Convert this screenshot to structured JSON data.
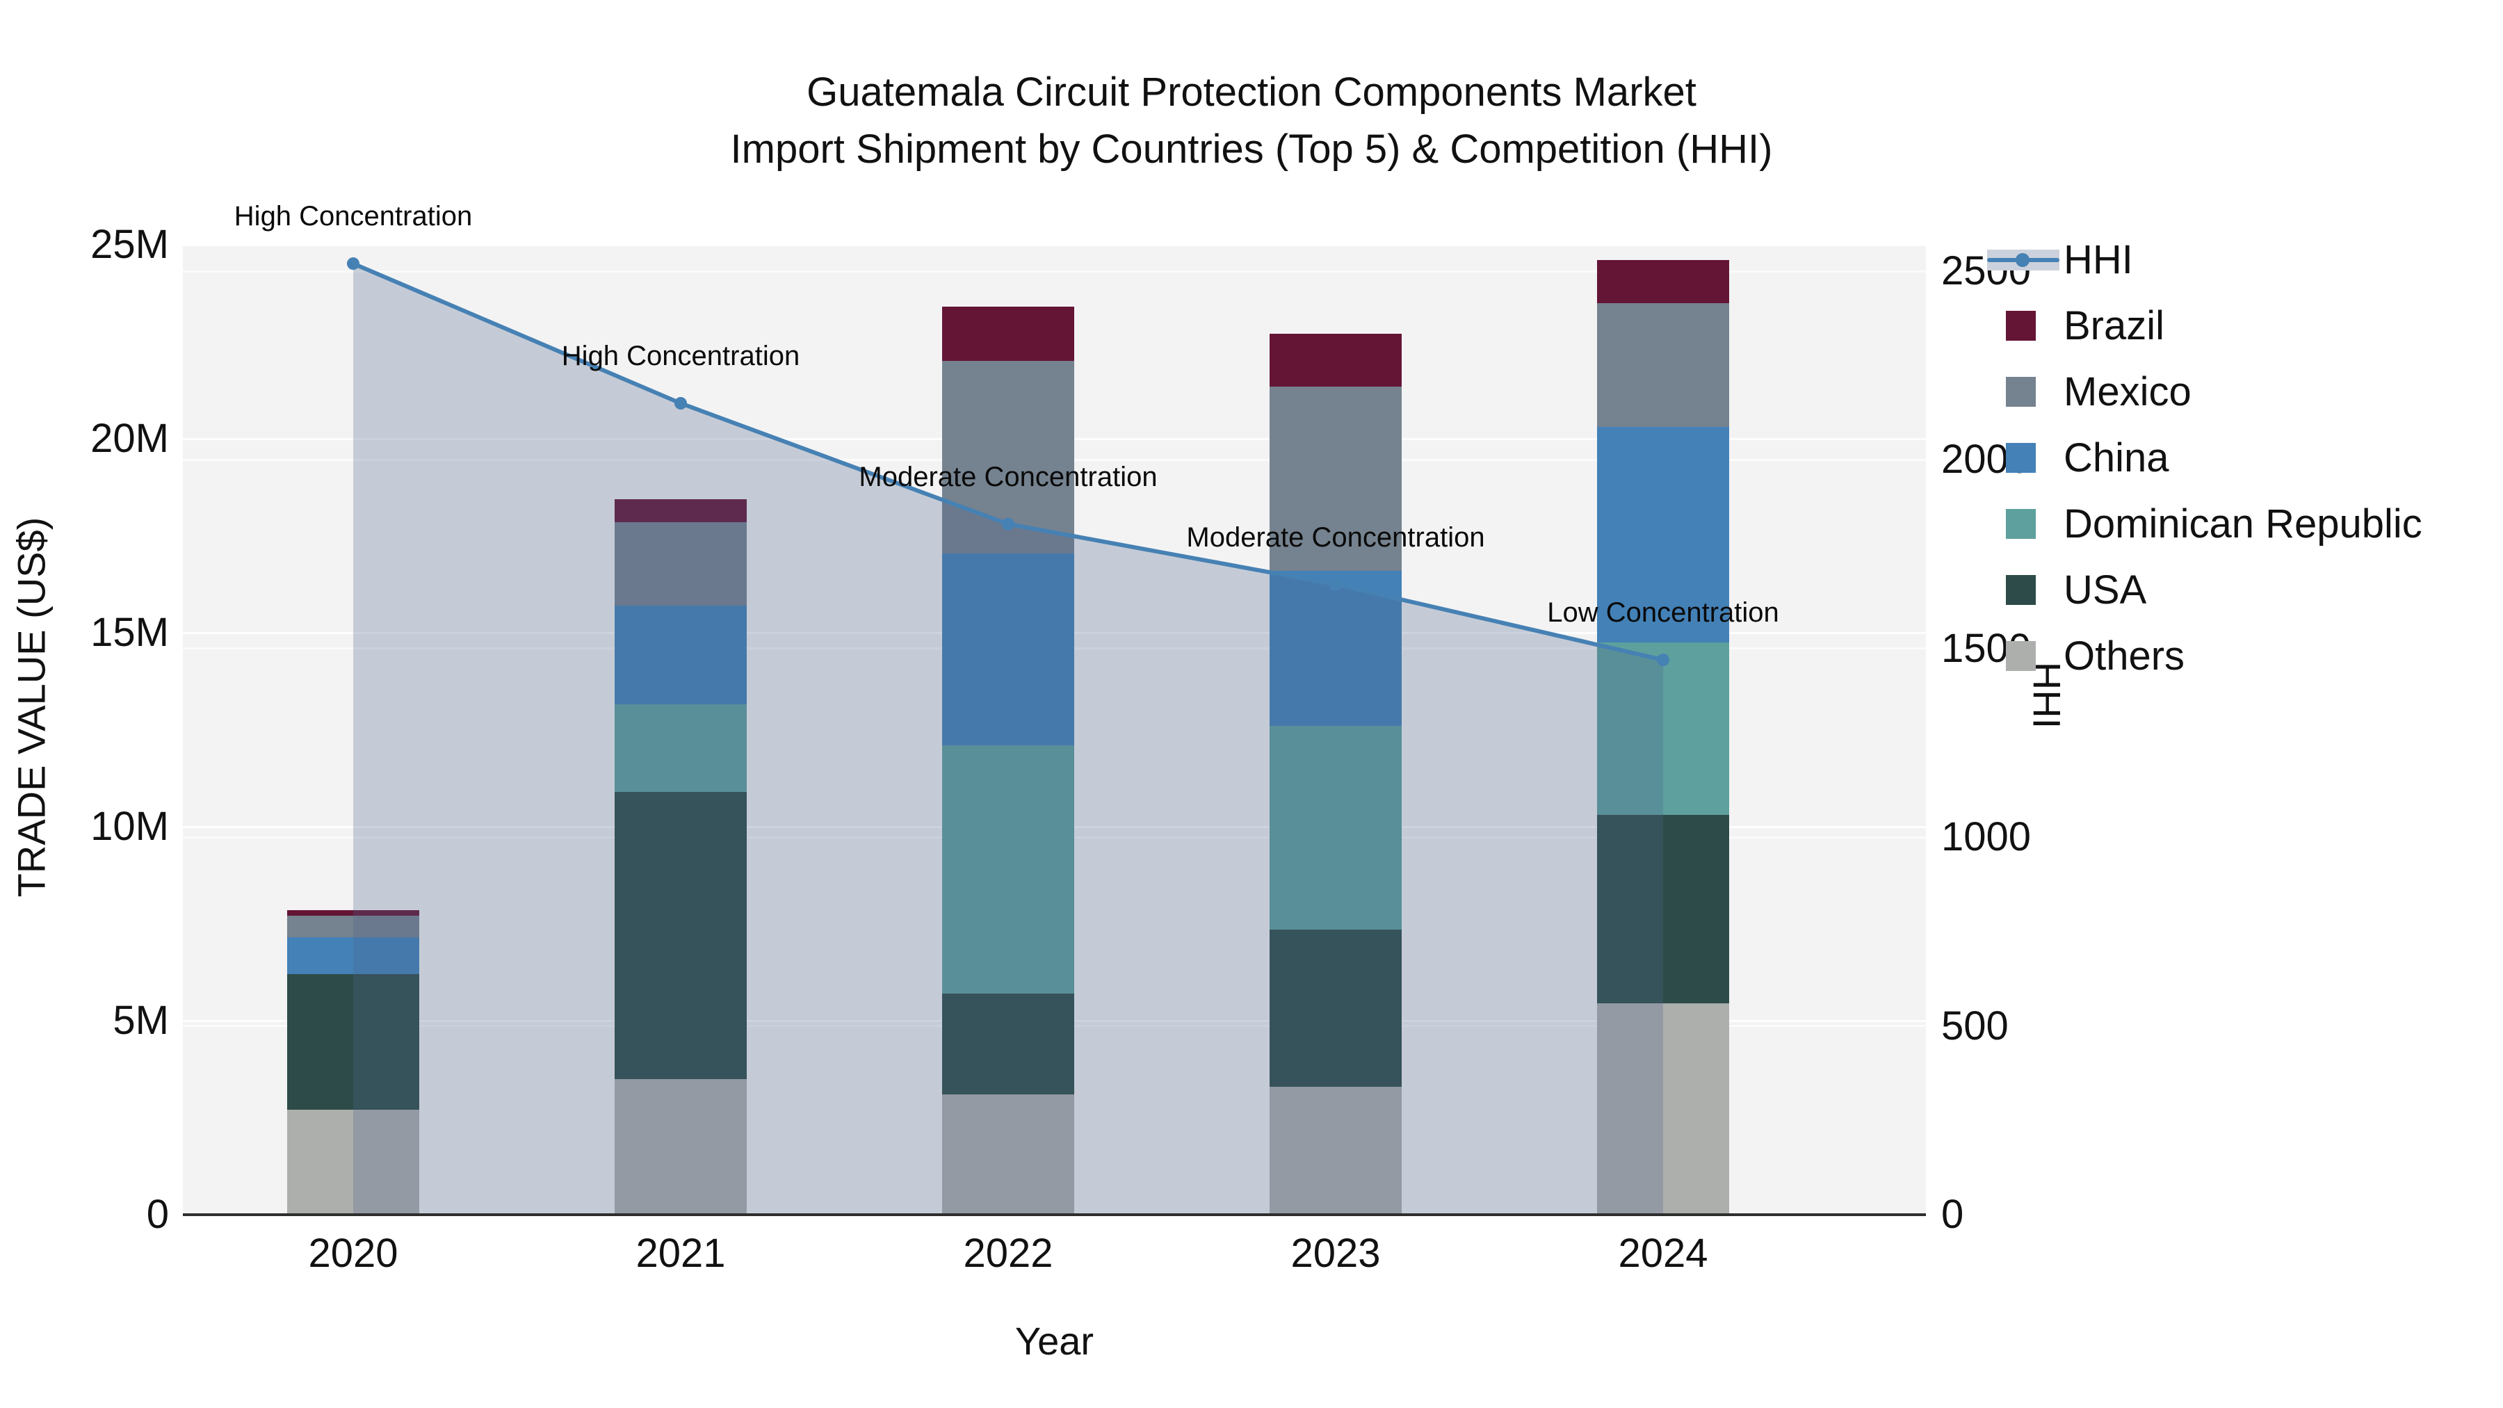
{
  "title": {
    "line1": "Guatemala Circuit Protection Components Market",
    "line2": "Import Shipment by Countries (Top 5) & Competition (HHI)"
  },
  "axes": {
    "x": {
      "title": "Year",
      "categories": [
        "2020",
        "2021",
        "2022",
        "2023",
        "2024"
      ]
    },
    "y_left": {
      "title": "TRADE VALUE (US$)",
      "tick_labels": [
        "0",
        "5M",
        "10M",
        "15M",
        "20M",
        "25M"
      ],
      "tick_values_musd": [
        0,
        5,
        10,
        15,
        20,
        25
      ],
      "range_musd": [
        0,
        25
      ]
    },
    "y_right": {
      "title": "HHI",
      "tick_labels": [
        "0",
        "500",
        "1000",
        "1500",
        "2000",
        "2500"
      ],
      "tick_values": [
        0,
        500,
        1000,
        1500,
        2000,
        2500
      ],
      "range": [
        0,
        2570
      ]
    }
  },
  "legend": {
    "items": [
      {
        "label": "HHI",
        "swatch": "line-area"
      },
      {
        "label": "Brazil",
        "swatch": "square"
      },
      {
        "label": "Mexico",
        "swatch": "square"
      },
      {
        "label": "China",
        "swatch": "square"
      },
      {
        "label": "Dominican Republic",
        "swatch": "square"
      },
      {
        "label": "USA",
        "swatch": "square"
      },
      {
        "label": "Others",
        "swatch": "square"
      }
    ]
  },
  "chart_data": {
    "type": [
      "bar",
      "line"
    ],
    "title": "Guatemala Circuit Protection Components Market Import Shipment by Countries (Top 5) & Competition (HHI)",
    "categories": [
      "2020",
      "2021",
      "2022",
      "2023",
      "2024"
    ],
    "bar_unit": "million US$",
    "bar_axis": "left",
    "stack_order_bottom_to_top": [
      "Others",
      "USA",
      "Dominican Republic",
      "China",
      "Mexico",
      "Brazil"
    ],
    "series": [
      {
        "name": "Others",
        "color": "#adafac",
        "values": [
          2.7,
          3.5,
          3.1,
          3.3,
          5.45
        ]
      },
      {
        "name": "USA",
        "color": "#2d4b48",
        "values": [
          3.5,
          7.4,
          2.6,
          4.05,
          4.85
        ]
      },
      {
        "name": "Dominican Republic",
        "color": "#5da09d",
        "values": [
          0,
          2.25,
          6.4,
          5.25,
          4.45
        ]
      },
      {
        "name": "China",
        "color": "#4381b7",
        "values": [
          0.95,
          2.55,
          4.95,
          4.0,
          5.55
        ]
      },
      {
        "name": "Mexico",
        "color": "#75828f",
        "values": [
          0.55,
          2.15,
          4.95,
          4.75,
          3.2
        ]
      },
      {
        "name": "Brazil",
        "color": "#641536",
        "values": [
          0.15,
          0.6,
          1.4,
          1.35,
          1.1
        ]
      }
    ],
    "bar_totals_musd": [
      7.85,
      18.45,
      23.4,
      22.7,
      24.6
    ],
    "line_series": {
      "name": "HHI",
      "axis": "right",
      "color": "#4681b4",
      "area_fill": "rgba(80,100,140,0.28)",
      "values": [
        2520,
        2150,
        1830,
        1670,
        1470
      ]
    },
    "annotations": [
      {
        "category": "2020",
        "text": "High Concentration"
      },
      {
        "category": "2021",
        "text": "High Concentration"
      },
      {
        "category": "2022",
        "text": "Moderate Concentration"
      },
      {
        "category": "2023",
        "text": "Moderate Concentration"
      },
      {
        "category": "2024",
        "text": "Low Concentration"
      }
    ],
    "legend_position": "right",
    "grid": true
  },
  "colors": {
    "plot_bg": "#f3f3f3",
    "grid": "rgba(255,255,255,0.92)",
    "axis_line": "#2e2e2e",
    "text": "#111111"
  }
}
